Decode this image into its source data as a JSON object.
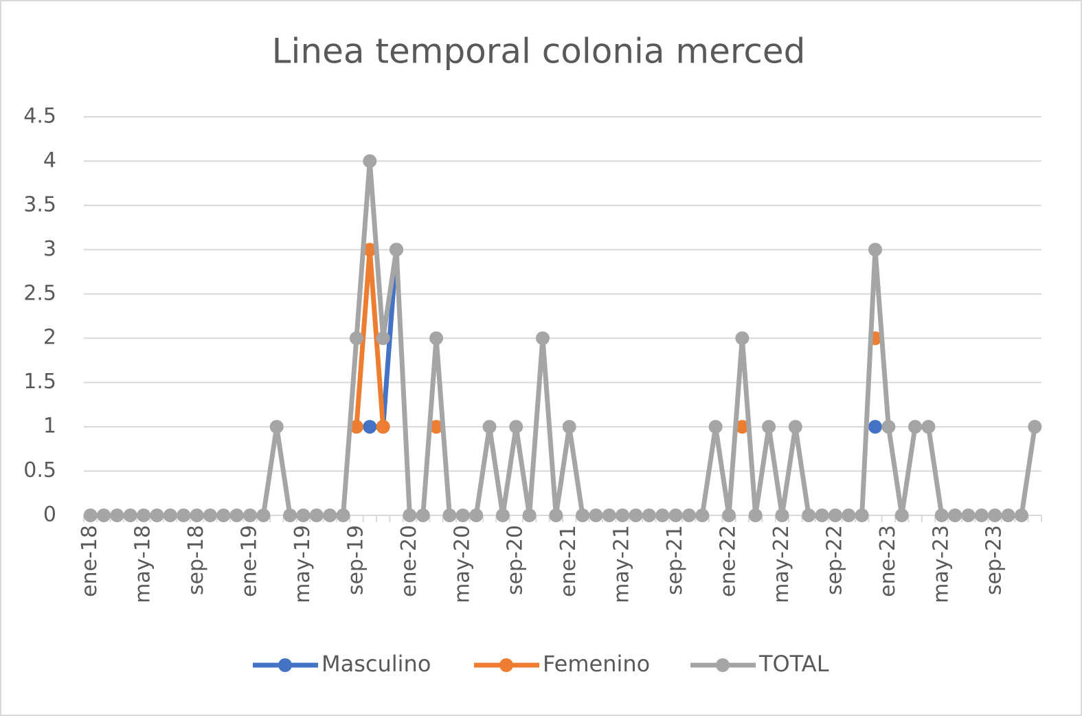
{
  "chart_data": {
    "type": "line",
    "title": "Linea temporal colonia merced",
    "categories": [
      "ene-18",
      null,
      null,
      null,
      "may-18",
      null,
      null,
      null,
      "sep-18",
      null,
      null,
      null,
      "ene-19",
      null,
      null,
      null,
      "may-19",
      null,
      null,
      null,
      "sep-19",
      null,
      null,
      null,
      "ene-20",
      null,
      null,
      null,
      "may-20",
      null,
      null,
      null,
      "sep-20",
      null,
      null,
      null,
      "ene-21",
      null,
      null,
      null,
      "may-21",
      null,
      null,
      null,
      "sep-21",
      null,
      null,
      null,
      "ene-22",
      null,
      null,
      null,
      "may-22",
      null,
      null,
      null,
      "sep-22",
      null,
      null,
      null,
      "ene-23",
      null,
      null,
      null,
      "may-23",
      null,
      null,
      null,
      "sep-23",
      null,
      null,
      null
    ],
    "series": [
      {
        "name": "Masculino",
        "color": "#4472c4",
        "values": [
          null,
          null,
          null,
          null,
          null,
          null,
          null,
          null,
          null,
          null,
          null,
          null,
          null,
          null,
          null,
          null,
          null,
          null,
          null,
          null,
          null,
          1,
          1,
          3,
          null,
          null,
          null,
          null,
          null,
          null,
          null,
          null,
          null,
          null,
          null,
          null,
          null,
          null,
          null,
          null,
          null,
          null,
          null,
          null,
          null,
          null,
          null,
          null,
          null,
          null,
          null,
          null,
          null,
          null,
          null,
          null,
          null,
          null,
          null,
          1,
          null,
          null,
          null,
          null,
          null,
          null,
          null,
          null,
          null,
          null,
          null,
          null
        ]
      },
      {
        "name": "Femenino",
        "color": "#ed7d31",
        "values": [
          null,
          null,
          null,
          null,
          null,
          null,
          null,
          null,
          null,
          null,
          null,
          null,
          null,
          null,
          null,
          null,
          null,
          null,
          null,
          null,
          1,
          3,
          1,
          null,
          null,
          null,
          1,
          null,
          null,
          null,
          null,
          null,
          null,
          null,
          null,
          null,
          null,
          null,
          null,
          null,
          null,
          null,
          null,
          null,
          null,
          null,
          null,
          null,
          null,
          1,
          null,
          null,
          null,
          null,
          null,
          null,
          null,
          null,
          null,
          2,
          null,
          null,
          null,
          null,
          null,
          null,
          null,
          null,
          null,
          null,
          null,
          null
        ]
      },
      {
        "name": "TOTAL",
        "color": "#a5a5a5",
        "values": [
          0,
          0,
          0,
          0,
          0,
          0,
          0,
          0,
          0,
          0,
          0,
          0,
          0,
          0,
          1,
          0,
          0,
          0,
          0,
          0,
          2,
          4,
          2,
          3,
          0,
          0,
          2,
          0,
          0,
          0,
          1,
          0,
          1,
          0,
          2,
          0,
          1,
          0,
          0,
          0,
          0,
          0,
          0,
          0,
          0,
          0,
          0,
          1,
          0,
          2,
          0,
          1,
          0,
          1,
          0,
          0,
          0,
          0,
          0,
          3,
          1,
          0,
          1,
          1,
          0,
          0,
          0,
          0,
          0,
          0,
          0,
          1
        ]
      }
    ],
    "ylim": [
      0,
      4.5
    ],
    "yticks": [
      0,
      0.5,
      1,
      1.5,
      2,
      2.5,
      3,
      3.5,
      4,
      4.5
    ],
    "grid": true,
    "legend": "bottom"
  }
}
